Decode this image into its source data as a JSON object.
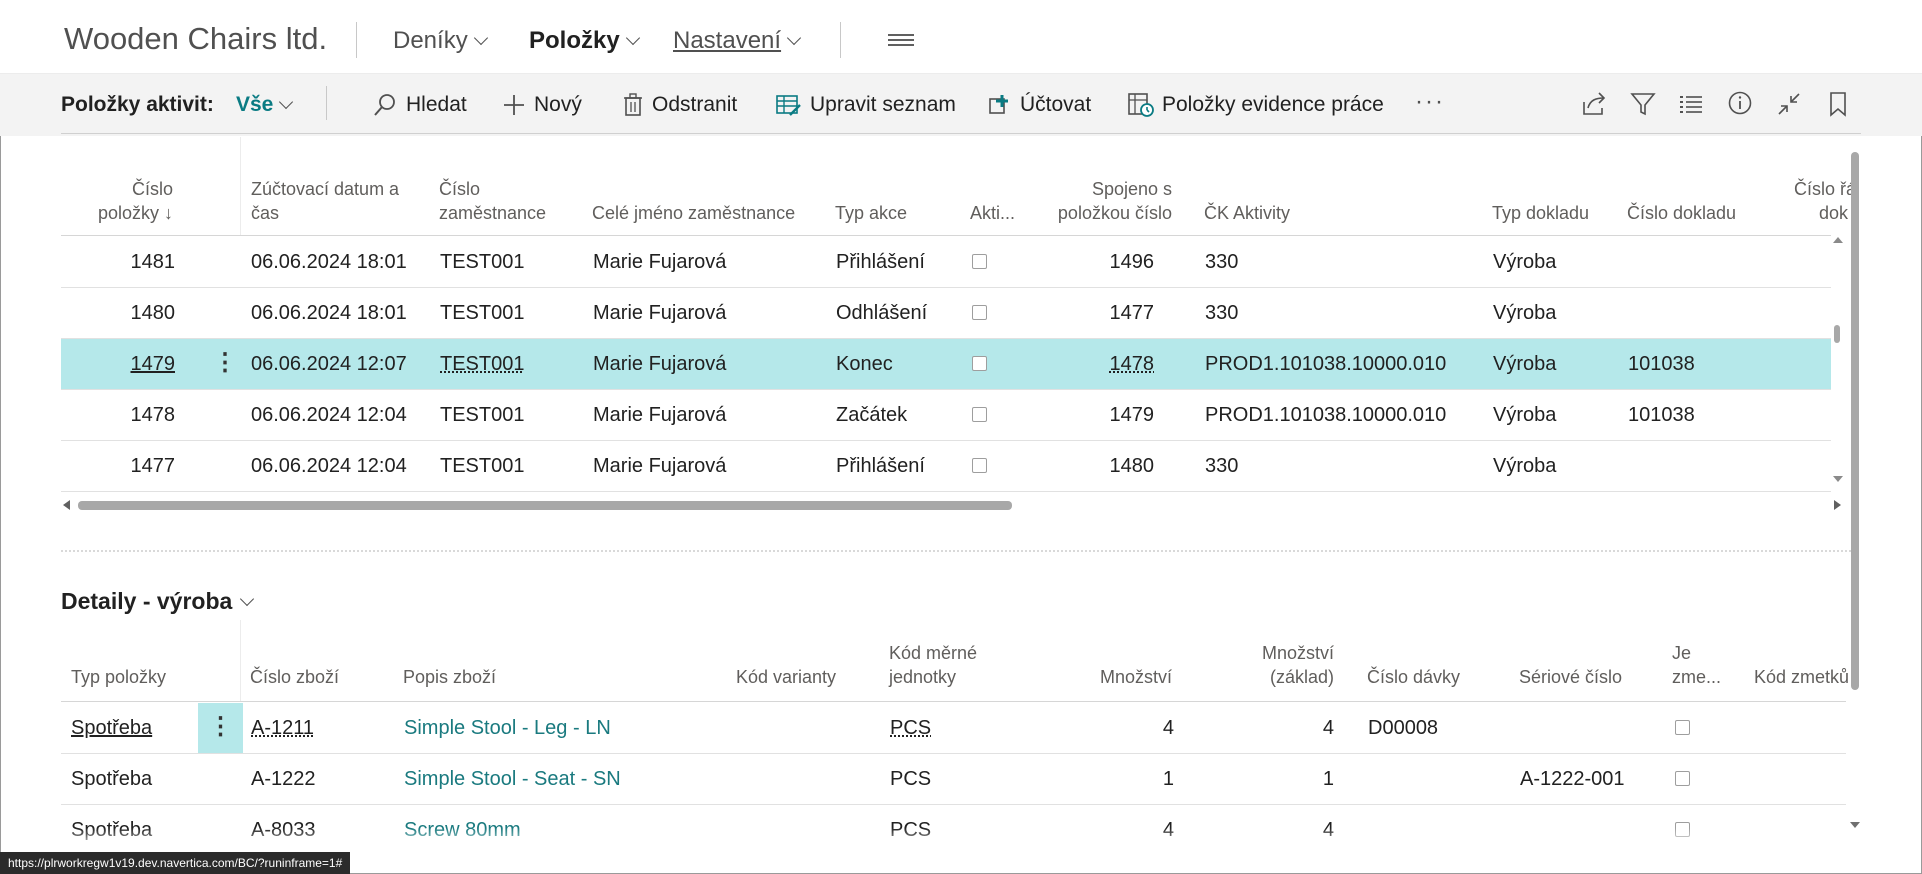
{
  "header": {
    "company": "Wooden Chairs ltd.",
    "nav": [
      {
        "label": "Deníky"
      },
      {
        "label": "Položky"
      },
      {
        "label": "Nastavení"
      }
    ]
  },
  "actionbar": {
    "title": "Položky aktivit:",
    "filter": "Vše",
    "buttons": {
      "search": "Hledat",
      "new": "Nový",
      "delete": "Odstranit",
      "edit_list": "Upravit seznam",
      "post": "Účtovat",
      "work_entries": "Položky evidence práce"
    },
    "more": "···"
  },
  "activities": {
    "columns": [
      {
        "l1": "Číslo",
        "l2": "položky ↓"
      },
      {
        "l1": "Zúčtovací datum a",
        "l2": "čas"
      },
      {
        "l1": "Číslo",
        "l2": "zaměstnance"
      },
      {
        "l1": "",
        "l2": "Celé jméno zaměstnance"
      },
      {
        "l1": "",
        "l2": "Typ akce"
      },
      {
        "l1": "",
        "l2": "Akti..."
      },
      {
        "l1": "Spojeno s",
        "l2": "položkou číslo"
      },
      {
        "l1": "",
        "l2": "ČK Aktivity"
      },
      {
        "l1": "",
        "l2": "Typ dokladu"
      },
      {
        "l1": "",
        "l2": "Číslo dokladu"
      },
      {
        "l1": "Číslo řá",
        "l2": "dok"
      }
    ],
    "rows": [
      {
        "no": "1481",
        "date": "06.06.2024 18:01",
        "emp": "TEST001",
        "name": "Marie Fujarová",
        "action": "Přihlášení",
        "linked": "1496",
        "ck": "330",
        "doctype": "Výroba",
        "docno": ""
      },
      {
        "no": "1480",
        "date": "06.06.2024 18:01",
        "emp": "TEST001",
        "name": "Marie Fujarová",
        "action": "Odhlášení",
        "linked": "1477",
        "ck": "330",
        "doctype": "Výroba",
        "docno": ""
      },
      {
        "no": "1479",
        "date": "06.06.2024 12:07",
        "emp": "TEST001",
        "name": "Marie Fujarová",
        "action": "Konec",
        "linked": "1478",
        "ck": "PROD1.101038.10000.010",
        "doctype": "Výroba",
        "docno": "101038"
      },
      {
        "no": "1478",
        "date": "06.06.2024 12:04",
        "emp": "TEST001",
        "name": "Marie Fujarová",
        "action": "Začátek",
        "linked": "1479",
        "ck": "PROD1.101038.10000.010",
        "doctype": "Výroba",
        "docno": "101038"
      },
      {
        "no": "1477",
        "date": "06.06.2024 12:04",
        "emp": "TEST001",
        "name": "Marie Fujarová",
        "action": "Přihlášení",
        "linked": "1480",
        "ck": "330",
        "doctype": "Výroba",
        "docno": ""
      }
    ]
  },
  "detail": {
    "title": "Detaily - výroba",
    "columns": [
      {
        "l1": "",
        "l2": "Typ položky"
      },
      {
        "l1": "",
        "l2": "Číslo zboží"
      },
      {
        "l1": "",
        "l2": "Popis zboží"
      },
      {
        "l1": "",
        "l2": "Kód varianty"
      },
      {
        "l1": "Kód měrné",
        "l2": "jednotky"
      },
      {
        "l1": "",
        "l2": "Množství"
      },
      {
        "l1": "Množství",
        "l2": "(základ)"
      },
      {
        "l1": "",
        "l2": "Číslo dávky"
      },
      {
        "l1": "",
        "l2": "Sériové číslo"
      },
      {
        "l1": "Je",
        "l2": "zme..."
      },
      {
        "l1": "",
        "l2": "Kód zmetků"
      }
    ],
    "rows": [
      {
        "type": "Spotřeba",
        "item": "A-1211",
        "desc": "Simple Stool - Leg - LN",
        "variant": "",
        "uom": "PCS",
        "qty": "4",
        "qty_base": "4",
        "lot": "D00008",
        "serial": ""
      },
      {
        "type": "Spotřeba",
        "item": "A-1222",
        "desc": "Simple Stool - Seat - SN",
        "variant": "",
        "uom": "PCS",
        "qty": "1",
        "qty_base": "1",
        "lot": "",
        "serial": "A-1222-001"
      },
      {
        "type": "Spotřeba",
        "item": "A-8033",
        "desc": "Screw 80mm",
        "variant": "",
        "uom": "PCS",
        "qty": "4",
        "qty_base": "4",
        "lot": "",
        "serial": ""
      }
    ]
  },
  "statusbar": {
    "url": "https://plrworkregw1v19.dev.navertica.com/BC/?runinframe=1#"
  }
}
